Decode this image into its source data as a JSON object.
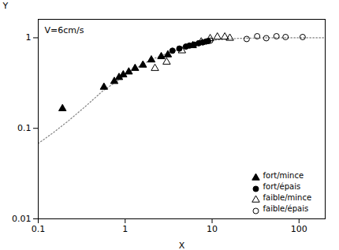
{
  "chart_data": {
    "type": "scatter",
    "xlabel": "X",
    "ylabel": "Y",
    "annotation": "V=6cm/s",
    "log": true,
    "xlim": [
      0.1,
      200
    ],
    "ylim": [
      0.01,
      1.6
    ],
    "xticks": [
      0.1,
      1,
      10,
      100
    ],
    "yticks": [
      0.01,
      0.1,
      1
    ],
    "grid": false,
    "legend": "lower right",
    "series": [
      {
        "type": "line",
        "color": "gray",
        "line_style": "dotted",
        "x": [
          0.1,
          0.15,
          0.22,
          0.35,
          0.55,
          0.8,
          1.2,
          2.0,
          3.5,
          5.5,
          8.0,
          12.0,
          20.0,
          40.0,
          80.0,
          150.0,
          200.0
        ],
        "values": [
          0.068,
          0.09,
          0.12,
          0.175,
          0.258,
          0.33,
          0.435,
          0.575,
          0.71,
          0.815,
          0.9,
          0.955,
          0.985,
          1.0,
          1.0,
          1.0,
          1.0
        ]
      },
      {
        "name": "fort/mince",
        "type": "scatter",
        "color": "black",
        "marker": "triangle",
        "x": [
          0.19,
          0.57,
          0.75,
          0.85,
          0.95,
          1.1,
          1.3,
          1.6,
          2.0,
          2.6,
          3.1
        ],
        "values": [
          0.165,
          0.285,
          0.33,
          0.365,
          0.39,
          0.42,
          0.46,
          0.5,
          0.57,
          0.62,
          0.65
        ]
      },
      {
        "name": "fort/épais",
        "type": "scatter",
        "color": "black",
        "marker": "circle",
        "x": [
          3.5,
          4.2,
          5.0,
          5.5,
          6.2,
          7.0,
          7.8,
          8.5,
          9.0
        ],
        "values": [
          0.72,
          0.76,
          0.8,
          0.82,
          0.84,
          0.87,
          0.89,
          0.91,
          0.92
        ]
      },
      {
        "name": "faible/mince",
        "type": "scatter",
        "color": "black",
        "marker": "triangle-open",
        "x": [
          2.2,
          3.0,
          4.5,
          6.0,
          7.5,
          9.5,
          11.5,
          14.0,
          16.0
        ],
        "values": [
          0.46,
          0.54,
          0.72,
          0.82,
          0.9,
          0.98,
          1.02,
          1.02,
          0.99
        ]
      },
      {
        "name": "faible/épais",
        "type": "scatter",
        "color": "black",
        "marker": "circle-open",
        "x": [
          9.5,
          25.0,
          33.0,
          42.0,
          55.0,
          70.0,
          110.0
        ],
        "values": [
          0.93,
          0.97,
          1.04,
          0.99,
          1.04,
          1.02,
          1.02
        ]
      }
    ]
  }
}
